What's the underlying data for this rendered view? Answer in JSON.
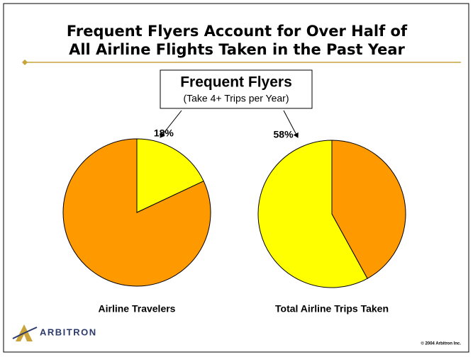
{
  "title_lines": [
    "Frequent Flyers Account for Over Half of",
    "All Airline Flights Taken in the Past Year"
  ],
  "callout": {
    "title": "Frequent Flyers",
    "subtitle": "(Take 4+ Trips per Year)"
  },
  "logo": "ARBITRON",
  "footer": "© 2004 Arbitron Inc.",
  "chart_data": [
    {
      "type": "pie",
      "title": "Airline Travelers",
      "values": [
        18,
        82
      ],
      "value_labels": [
        "18%",
        null
      ],
      "colors": [
        "#ffff00",
        "#ff9900"
      ],
      "direction": "clockwise"
    },
    {
      "type": "pie",
      "title": "Total Airline Trips Taken",
      "values": [
        58,
        42
      ],
      "value_labels": [
        "58%",
        null
      ],
      "colors": [
        "#ffff00",
        "#ff9900"
      ],
      "direction": "counterclockwise"
    }
  ]
}
